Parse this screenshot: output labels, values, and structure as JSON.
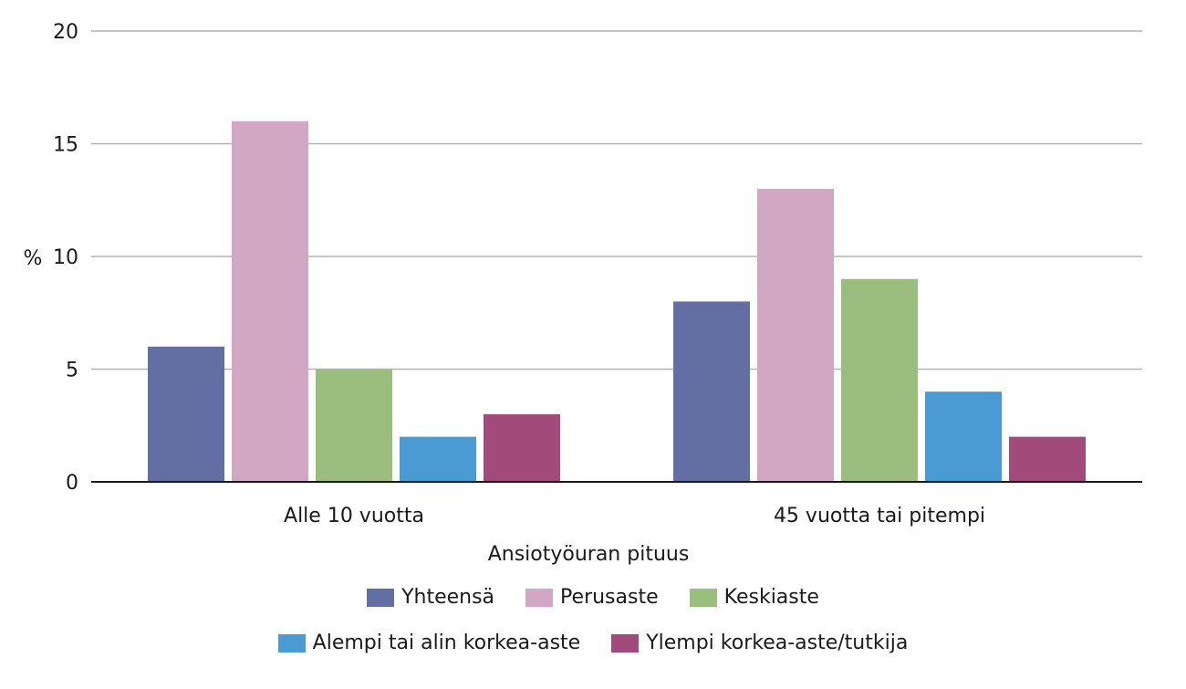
{
  "chart_data": {
    "type": "bar",
    "categories": [
      "Alle 10 vuotta",
      "45 vuotta tai pitempi"
    ],
    "series": [
      {
        "name": "Yhteensä",
        "values": [
          6,
          8
        ],
        "color": "#636ea3"
      },
      {
        "name": "Perusaste",
        "values": [
          16,
          13
        ],
        "color": "#d2a7c3"
      },
      {
        "name": "Keskiaste",
        "values": [
          5,
          9
        ],
        "color": "#9bbd7d"
      },
      {
        "name": "Alempi tai alin korkea-aste",
        "values": [
          2,
          4
        ],
        "color": "#4a9ad3"
      },
      {
        "name": "Ylempi korkea-aste/tutkija",
        "values": [
          3,
          2
        ],
        "color": "#a24a7a"
      }
    ],
    "xlabel": "Ansiotyöuran pituus",
    "ylabel": "%",
    "ylim": [
      0,
      20
    ],
    "yticks": [
      0,
      5,
      10,
      15,
      20
    ],
    "grid": true,
    "legend_position": "bottom"
  }
}
